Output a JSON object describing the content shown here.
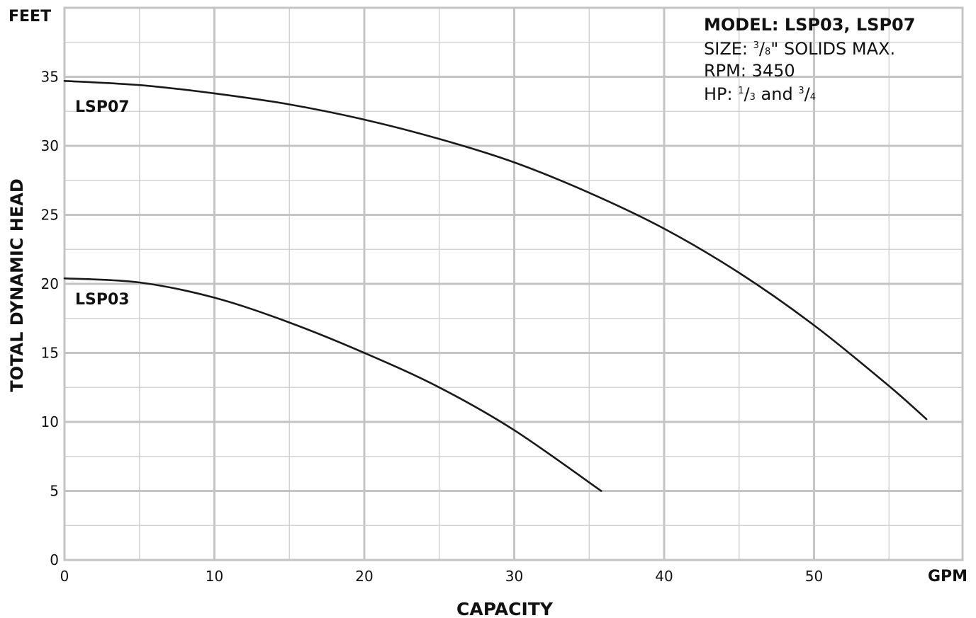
{
  "chart_data": {
    "type": "line",
    "xlabel": "CAPACITY",
    "ylabel": "TOTAL DYNAMIC HEAD",
    "x_unit": "GPM",
    "y_unit": "FEET",
    "xlim": [
      0,
      60
    ],
    "ylim": [
      0,
      40
    ],
    "x_major_step": 10,
    "x_minor_step": 5,
    "y_major_step": 5,
    "y_minor_step": 2.5,
    "x_ticks": [
      "0",
      "10",
      "20",
      "30",
      "40",
      "50"
    ],
    "y_ticks": [
      "0",
      "5",
      "10",
      "15",
      "20",
      "25",
      "30",
      "35"
    ],
    "grid": true,
    "series": [
      {
        "name": "LSP07",
        "x": [
          0,
          5,
          10,
          15,
          20,
          25,
          30,
          35,
          40,
          45,
          50,
          55,
          57.5
        ],
        "y": [
          34.7,
          34.4,
          33.8,
          33.0,
          31.9,
          30.5,
          28.8,
          26.6,
          24.0,
          20.8,
          17.0,
          12.6,
          10.2
        ]
      },
      {
        "name": "LSP03",
        "x": [
          0,
          5,
          10,
          15,
          20,
          25,
          30,
          35.8
        ],
        "y": [
          20.4,
          20.1,
          19.0,
          17.2,
          15.0,
          12.5,
          9.4,
          5.0
        ]
      }
    ]
  },
  "info_box": {
    "model": "MODEL: LSP03, LSP07",
    "size_prefix": "SIZE: ",
    "size_num": "3",
    "size_slash": "/",
    "size_den": "8",
    "size_suffix": "\" SOLIDS MAX.",
    "rpm": "RPM: 3450",
    "hp_prefix": "HP: ",
    "hp_num1": "1",
    "hp_slash1": "/",
    "hp_den1": "3",
    "hp_and": " and ",
    "hp_num2": "3",
    "hp_slash2": "/",
    "hp_den2": "4"
  }
}
